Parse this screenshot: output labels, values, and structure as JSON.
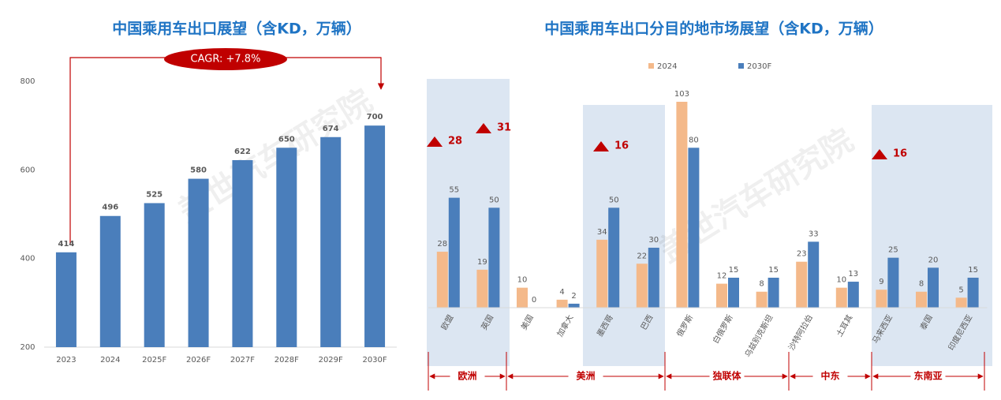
{
  "chart_data": [
    {
      "type": "bar",
      "title": "中国乘用车出口展望（含KD，万辆）",
      "categories": [
        "2023",
        "2024",
        "2025F",
        "2026F",
        "2027F",
        "2028F",
        "2029F",
        "2030F"
      ],
      "values": [
        414,
        496,
        525,
        580,
        622,
        650,
        674,
        700
      ],
      "color": "#4a7ebb",
      "ylim": [
        200,
        800
      ],
      "yticks": [
        200,
        400,
        600,
        800
      ],
      "annotation": "CAGR: +7.8%",
      "watermark": "盖世汽车研究院"
    },
    {
      "type": "grouped_bar",
      "title": "中国乘用车出口分目的地市场展望（含KD，万辆）",
      "categories": [
        "欧盟",
        "英国",
        "美国",
        "加拿大",
        "墨西哥",
        "巴西",
        "俄罗斯",
        "白俄罗斯",
        "乌兹别克斯坦",
        "沙特阿拉伯",
        "土耳其",
        "马来西亚",
        "泰国",
        "印度尼西亚"
      ],
      "series": [
        {
          "name": "2024",
          "color": "#f4b98a",
          "values": [
            28,
            19,
            10,
            4,
            34,
            22,
            103,
            12,
            8,
            23,
            10,
            9,
            8,
            5
          ]
        },
        {
          "name": "2030F",
          "color": "#4a7ebb",
          "values": [
            55,
            50,
            0,
            2,
            50,
            30,
            80,
            15,
            15,
            33,
            13,
            25,
            20,
            15
          ]
        }
      ],
      "groups": [
        "欧洲",
        "美洲",
        "独联体",
        "中东",
        "东南亚"
      ],
      "increments": [
        28,
        31,
        16,
        16
      ],
      "watermark": "盖世汽车研究院"
    }
  ]
}
